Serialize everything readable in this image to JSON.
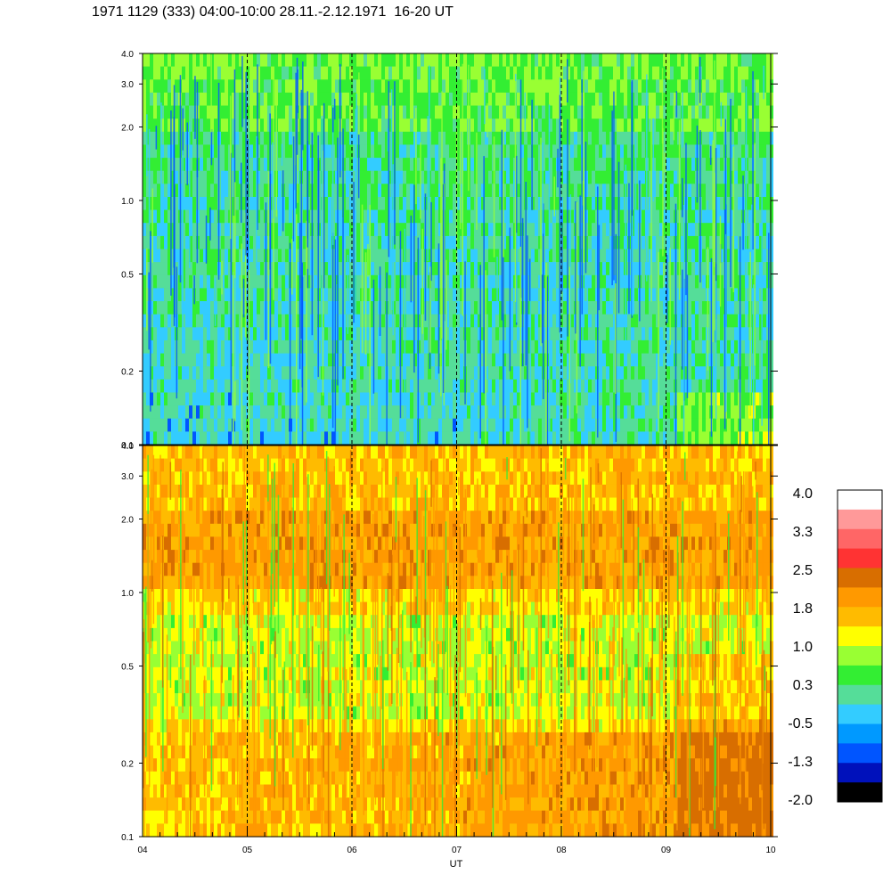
{
  "header": {
    "title": "1971 1129 (333) 04:00-10:00 28.11.-2.12.1971  16-20 UT"
  },
  "chart_data": [
    {
      "type": "heatmap",
      "panel": "upper",
      "xlabel": "",
      "ylabel": "",
      "x_range": [
        4,
        10
      ],
      "ylim": [
        0.1,
        4.0
      ],
      "y_scale": "log",
      "y_ticks": [
        {
          "value": 0.1,
          "label": "0.1"
        },
        {
          "value": 0.2,
          "label": "0.2"
        },
        {
          "value": 0.5,
          "label": "0.5"
        },
        {
          "value": 1.0,
          "label": "1.0"
        },
        {
          "value": 2.0,
          "label": "2.0"
        },
        {
          "value": 3.0,
          "label": "3.0"
        },
        {
          "value": 4.0,
          "label": "4.0"
        }
      ],
      "dominant_levels": [
        "green",
        "cyan",
        "blue"
      ],
      "hour_markers": [
        5,
        6,
        7,
        8,
        9
      ]
    },
    {
      "type": "heatmap",
      "panel": "lower",
      "xlabel": "UT",
      "ylabel": "",
      "x_range": [
        4,
        10
      ],
      "x_ticks": [
        {
          "value": 4,
          "label": "04"
        },
        {
          "value": 5,
          "label": "05"
        },
        {
          "value": 6,
          "label": "06"
        },
        {
          "value": 7,
          "label": "07"
        },
        {
          "value": 8,
          "label": "08"
        },
        {
          "value": 9,
          "label": "09"
        },
        {
          "value": 10,
          "label": "10"
        }
      ],
      "ylim": [
        0.1,
        4.0
      ],
      "y_scale": "log",
      "y_ticks": [
        {
          "value": 0.1,
          "label": "0.1"
        },
        {
          "value": 0.2,
          "label": "0.2"
        },
        {
          "value": 0.5,
          "label": "0.5"
        },
        {
          "value": 1.0,
          "label": "1.0"
        },
        {
          "value": 2.0,
          "label": "2.0"
        },
        {
          "value": 3.0,
          "label": "3.0"
        },
        {
          "value": 4.0,
          "label": "4.0"
        }
      ],
      "dominant_levels": [
        "yellow",
        "orange",
        "green"
      ],
      "hour_markers": [
        5,
        6,
        7,
        8,
        9
      ]
    }
  ],
  "colorbar": {
    "range": [
      -2.0,
      4.0
    ],
    "labels": [
      "4.0",
      "3.3",
      "2.5",
      "1.8",
      "1.0",
      "0.3",
      "-0.5",
      "-1.3",
      "-2.0"
    ],
    "colors": [
      "#ffffff",
      "#ff9999",
      "#ff6666",
      "#ff3333",
      "#d86e00",
      "#ff9900",
      "#ffbb00",
      "#ffff00",
      "#99ff33",
      "#33ee33",
      "#55dd99",
      "#33ccff",
      "#0099ff",
      "#0055ff",
      "#0011bb",
      "#000000"
    ]
  }
}
